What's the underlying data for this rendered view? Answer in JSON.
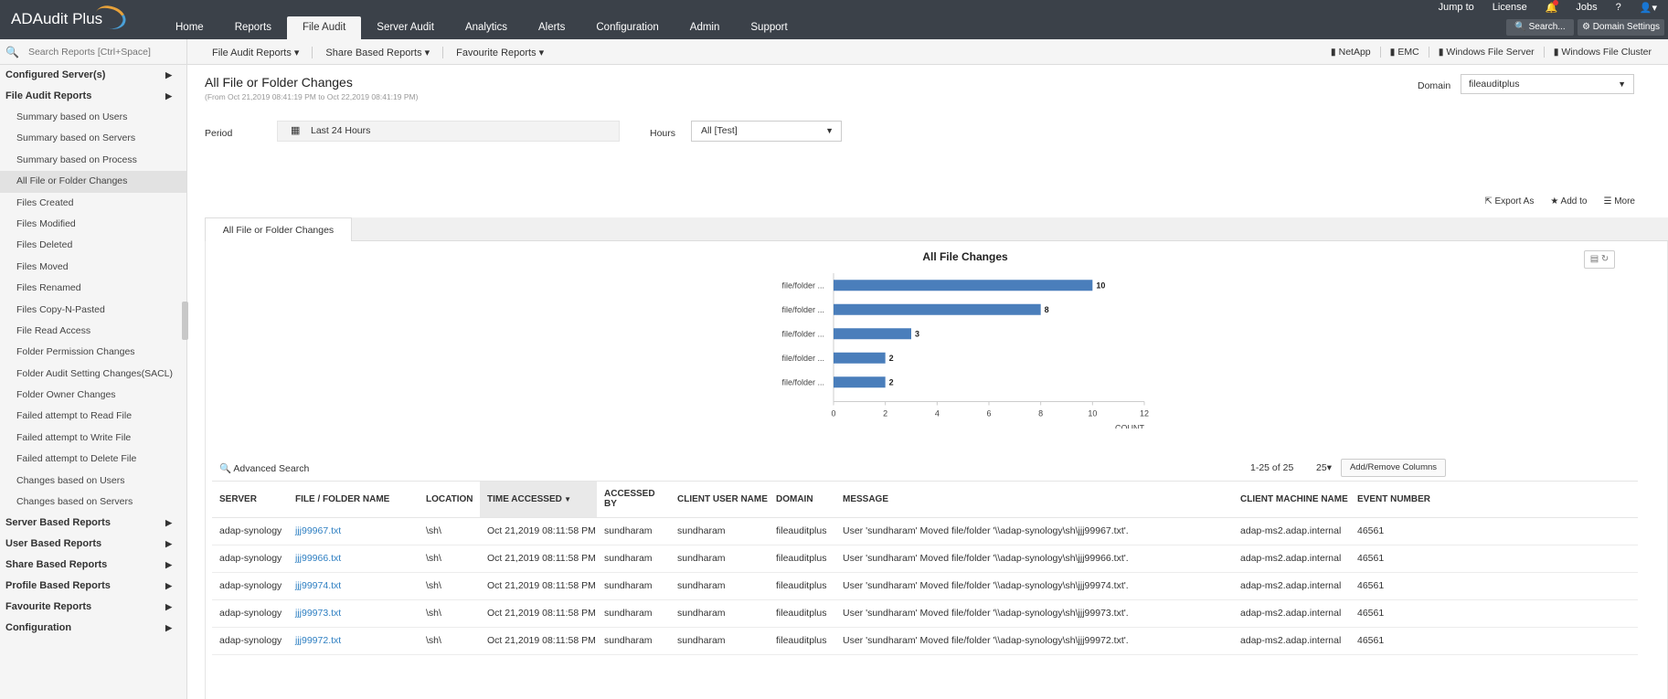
{
  "app": {
    "logo_text": "ADAudit Plus"
  },
  "header": {
    "nav": [
      "Home",
      "Reports",
      "File Audit",
      "Server Audit",
      "Analytics",
      "Alerts",
      "Configuration",
      "Admin",
      "Support"
    ],
    "active_nav": "File Audit",
    "jump_to": "Jump to",
    "license": "License",
    "jobs": "Jobs",
    "help": "?",
    "search_btn": "Search...",
    "domain_settings_btn": "Domain Settings"
  },
  "subbar": {
    "search_placeholder": "Search Reports [Ctrl+Space]",
    "menus": [
      "File Audit Reports ▾",
      "Share Based Reports ▾",
      "Favourite Reports ▾"
    ],
    "vendors": [
      "NetApp",
      "EMC",
      "Windows File Server",
      "Windows File Cluster"
    ]
  },
  "sidebar": {
    "configured_servers": "Configured Server(s)",
    "file_audit_reports": "File Audit Reports",
    "items": [
      "Summary based on Users",
      "Summary based on Servers",
      "Summary based on Process",
      "All File or Folder Changes",
      "Files Created",
      "Files Modified",
      "Files Deleted",
      "Files Moved",
      "Files Renamed",
      "Files Copy-N-Pasted",
      "File Read Access",
      "Folder Permission Changes",
      "Folder Audit Setting Changes(SACL)",
      "Folder Owner Changes",
      "Failed attempt to Read File",
      "Failed attempt to Write File",
      "Failed attempt to Delete File",
      "Changes based on Users",
      "Changes based on Servers"
    ],
    "active_item": "All File or Folder Changes",
    "groups": [
      "Server Based Reports",
      "User Based Reports",
      "Share Based Reports",
      "Profile Based Reports",
      "Favourite Reports",
      "Configuration"
    ]
  },
  "report": {
    "title": "All File or Folder Changes",
    "subtitle": "(From Oct 21,2019 08:41:19 PM to Oct 22,2019 08:41:19 PM)",
    "domain_label": "Domain",
    "domain_value": "fileauditplus",
    "period_label": "Period",
    "period_value": "Last 24 Hours",
    "hours_label": "Hours",
    "hours_value": "All [Test]",
    "export": "Export As",
    "add_to": "Add to",
    "more": "More",
    "tab": "All File or Folder Changes"
  },
  "chart_data": {
    "type": "bar",
    "orientation": "horizontal",
    "title": "All File Changes",
    "categories": [
      "file/folder ...",
      "file/folder ...",
      "file/folder ...",
      "file/folder ...",
      "file/folder ..."
    ],
    "values": [
      10,
      8,
      3,
      2,
      2
    ],
    "xlabel": "COUNT",
    "xlim": [
      0,
      12
    ],
    "xticks": [
      0,
      2,
      4,
      6,
      8,
      10,
      12
    ],
    "bar_color": "#4a7ebb"
  },
  "grid": {
    "advanced_search": "Advanced Search",
    "page_info": "1-25 of 25",
    "page_size": "25",
    "add_remove_columns": "Add/Remove Columns",
    "columns": [
      "SERVER",
      "FILE / FOLDER NAME",
      "LOCATION",
      "TIME ACCESSED",
      "ACCESSED BY",
      "CLIENT USER NAME",
      "DOMAIN",
      "MESSAGE",
      "CLIENT MACHINE NAME",
      "EVENT NUMBER"
    ],
    "sorted_column": "TIME ACCESSED",
    "rows": [
      [
        "adap-synology",
        "jjj99967.txt",
        "\\sh\\",
        "Oct 21,2019 08:11:58 PM",
        "sundharam",
        "sundharam",
        "fileauditplus",
        "User 'sundharam' Moved file/folder '\\\\adap-synology\\sh\\jjj99967.txt'.",
        "adap-ms2.adap.internal",
        "46561"
      ],
      [
        "adap-synology",
        "jjj99966.txt",
        "\\sh\\",
        "Oct 21,2019 08:11:58 PM",
        "sundharam",
        "sundharam",
        "fileauditplus",
        "User 'sundharam' Moved file/folder '\\\\adap-synology\\sh\\jjj99966.txt'.",
        "adap-ms2.adap.internal",
        "46561"
      ],
      [
        "adap-synology",
        "jjj99974.txt",
        "\\sh\\",
        "Oct 21,2019 08:11:58 PM",
        "sundharam",
        "sundharam",
        "fileauditplus",
        "User 'sundharam' Moved file/folder '\\\\adap-synology\\sh\\jjj99974.txt'.",
        "adap-ms2.adap.internal",
        "46561"
      ],
      [
        "adap-synology",
        "jjj99973.txt",
        "\\sh\\",
        "Oct 21,2019 08:11:58 PM",
        "sundharam",
        "sundharam",
        "fileauditplus",
        "User 'sundharam' Moved file/folder '\\\\adap-synology\\sh\\jjj99973.txt'.",
        "adap-ms2.adap.internal",
        "46561"
      ],
      [
        "adap-synology",
        "jjj99972.txt",
        "\\sh\\",
        "Oct 21,2019 08:11:58 PM",
        "sundharam",
        "sundharam",
        "fileauditplus",
        "User 'sundharam' Moved file/folder '\\\\adap-synology\\sh\\jjj99972.txt'.",
        "adap-ms2.adap.internal",
        "46561"
      ]
    ]
  }
}
